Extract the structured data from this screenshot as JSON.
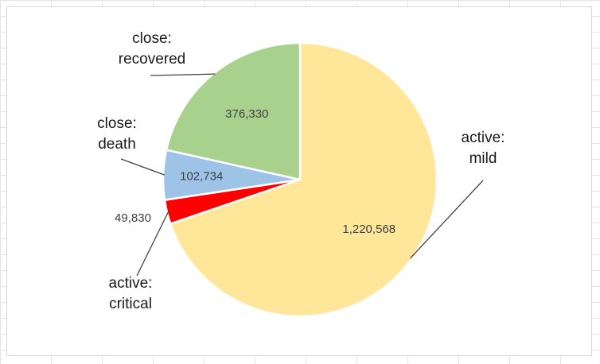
{
  "chart_data": {
    "type": "pie",
    "title": "",
    "categories": [
      "active: mild",
      "active: critical",
      "close: death",
      "close: recovered"
    ],
    "values": [
      1220568,
      49830,
      102734,
      376330
    ],
    "value_labels": [
      "1,220,568",
      "49,830",
      "102,734",
      "376,330"
    ],
    "label_lines": [
      [
        "active:",
        "mild"
      ],
      [
        "active:",
        "critical"
      ],
      [
        "close:",
        "death"
      ],
      [
        "close:",
        "recovered"
      ]
    ],
    "colors": [
      "#FFE699",
      "#FF0000",
      "#9DC3E6",
      "#A9D18E"
    ],
    "start": "12 o'clock",
    "direction": "clockwise",
    "legend": "none",
    "grid": false
  }
}
